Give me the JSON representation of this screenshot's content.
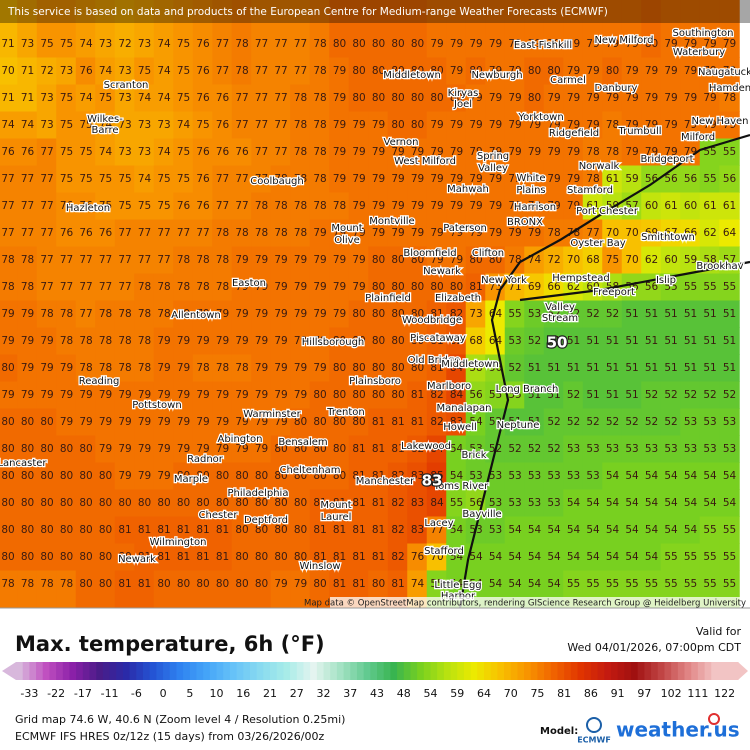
{
  "header": {
    "disclaimer": "This service is based on data and products of the European Centre for Medium-range Weather Forecasts (ECMWF)"
  },
  "map": {
    "attribution": "Map data © OpenStreetMap contributors, rendering GIScience Research Group @ Heidelberg University",
    "highlights": [
      50,
      83
    ],
    "places": [
      "East Fishkill",
      "New Milford",
      "Southington",
      "Waterbury",
      "Naugatuck",
      "Middletown",
      "Newburgh",
      "Carmel",
      "Danbury",
      "Hamden",
      "Kiryas",
      "Joel",
      "Scranton",
      "Wilkes-",
      "Barre",
      "Yorktown",
      "Ridgefield",
      "Trumbull",
      "New Haven",
      "Milford",
      "Vernon",
      "West Milford",
      "Spring",
      "Valley",
      "Norwalk",
      "Bridgeport",
      "Coolbaugh",
      "Mahwah",
      "White",
      "Plains",
      "Stamford",
      "Hazleton",
      "Montville",
      "Harrison",
      "Port Chester",
      "Mount",
      "Olive",
      "Paterson",
      "BRONX",
      "Oyster Bay",
      "Smithtown",
      "Bloomfield",
      "Clifton",
      "Newark",
      "New York",
      "Hempstead",
      "Islip",
      "Brookhav",
      "Easton",
      "Plainfield",
      "Elizabeth",
      "Freeport",
      "Valley",
      "Stream",
      "Allentown",
      "Woodbridge",
      "Hillsborough",
      "Piscataway",
      "Old Bridge",
      "Middletown",
      "Reading",
      "Plainsboro",
      "Marlboro",
      "Long Branch",
      "Pottstown",
      "Manalapan",
      "Warminster",
      "Trenton",
      "Neptune",
      "Howell",
      "Abington",
      "Bensalem",
      "Lakewood",
      "Radnor",
      "Lancaster",
      "Brick",
      "Cheltenham",
      "Manchester",
      "Toms River",
      "Marple",
      "Philadelphia",
      "Mount",
      "Laurel",
      "Bayville",
      "Chester",
      "Deptford",
      "Lacey",
      "Wilmington",
      "Stafford",
      "Newark",
      "Winslow",
      "Little Egg",
      "Harbor"
    ]
  },
  "grid": {
    "rows": [
      [
        71,
        73,
        75,
        75,
        74,
        73,
        72,
        73,
        74,
        75,
        76,
        77,
        78,
        77,
        77,
        77,
        78,
        80,
        80,
        80,
        80,
        80,
        79,
        79,
        79,
        79,
        79,
        79,
        79,
        79,
        79,
        79,
        79,
        80,
        79,
        79,
        79,
        79
      ],
      [
        70,
        71,
        72,
        73,
        76,
        74,
        73,
        75,
        74,
        75,
        76,
        77,
        78,
        77,
        77,
        77,
        78,
        79,
        80,
        80,
        80,
        80,
        80,
        79,
        80,
        79,
        79,
        80,
        80,
        79,
        79,
        80,
        79,
        79,
        79,
        79,
        79,
        79
      ],
      [
        71,
        71,
        73,
        75,
        74,
        75,
        73,
        74,
        74,
        75,
        76,
        76,
        77,
        77,
        77,
        78,
        78,
        79,
        80,
        80,
        80,
        80,
        80,
        80,
        79,
        79,
        79,
        80,
        79,
        79,
        79,
        79,
        79,
        79,
        79,
        79,
        79,
        78
      ],
      [
        74,
        74,
        73,
        75,
        75,
        74,
        73,
        73,
        73,
        74,
        75,
        76,
        77,
        77,
        77,
        78,
        78,
        79,
        79,
        79,
        80,
        80,
        79,
        79,
        79,
        79,
        79,
        79,
        79,
        79,
        79,
        78,
        79,
        79,
        79,
        79,
        79,
        79
      ],
      [
        76,
        76,
        77,
        75,
        75,
        74,
        73,
        73,
        74,
        75,
        76,
        76,
        76,
        77,
        77,
        78,
        78,
        79,
        79,
        79,
        79,
        79,
        79,
        79,
        79,
        79,
        79,
        79,
        79,
        79,
        78,
        78,
        79,
        79,
        79,
        79,
        55,
        55
      ],
      [
        77,
        77,
        77,
        75,
        75,
        75,
        75,
        74,
        75,
        75,
        76,
        77,
        77,
        77,
        78,
        78,
        78,
        79,
        79,
        79,
        79,
        79,
        79,
        79,
        79,
        79,
        79,
        79,
        79,
        79,
        78,
        61,
        59,
        56,
        56,
        56,
        55,
        56
      ],
      [
        77,
        77,
        77,
        76,
        76,
        75,
        75,
        75,
        75,
        76,
        76,
        77,
        77,
        78,
        78,
        78,
        78,
        78,
        79,
        79,
        79,
        79,
        79,
        79,
        79,
        79,
        79,
        79,
        79,
        79,
        61,
        59,
        57,
        60,
        61,
        60,
        61,
        61
      ],
      [
        77,
        77,
        77,
        76,
        76,
        76,
        77,
        77,
        77,
        77,
        77,
        78,
        78,
        78,
        78,
        78,
        79,
        79,
        79,
        79,
        79,
        79,
        79,
        79,
        79,
        79,
        79,
        79,
        78,
        78,
        77,
        70,
        70,
        69,
        67,
        66,
        62,
        64
      ],
      [
        78,
        78,
        77,
        77,
        77,
        77,
        77,
        77,
        77,
        78,
        78,
        78,
        79,
        79,
        79,
        79,
        79,
        79,
        79,
        80,
        80,
        80,
        79,
        79,
        80,
        80,
        78,
        74,
        72,
        70,
        68,
        75,
        70,
        62,
        60,
        59,
        58,
        57
      ],
      [
        78,
        78,
        77,
        77,
        77,
        77,
        77,
        78,
        78,
        78,
        78,
        78,
        79,
        79,
        79,
        79,
        79,
        79,
        79,
        80,
        80,
        80,
        80,
        80,
        81,
        75,
        71,
        69,
        66,
        62,
        60,
        58,
        56,
        56,
        55,
        55,
        55,
        55
      ],
      [
        79,
        79,
        78,
        78,
        77,
        78,
        78,
        78,
        78,
        79,
        79,
        79,
        79,
        79,
        79,
        79,
        79,
        79,
        80,
        80,
        80,
        80,
        81,
        82,
        73,
        64,
        55,
        53,
        52,
        52,
        52,
        52,
        51,
        51,
        51,
        51,
        51,
        51
      ],
      [
        79,
        79,
        79,
        78,
        78,
        78,
        78,
        78,
        79,
        79,
        79,
        79,
        79,
        79,
        79,
        79,
        79,
        80,
        80,
        80,
        80,
        80,
        81,
        82,
        68,
        64,
        53,
        52,
        51,
        51,
        51,
        51,
        51,
        51,
        51,
        51,
        51,
        51
      ],
      [
        80,
        79,
        79,
        79,
        78,
        78,
        78,
        78,
        79,
        79,
        78,
        78,
        78,
        79,
        79,
        79,
        79,
        80,
        80,
        80,
        80,
        80,
        81,
        84,
        58,
        56,
        52,
        51,
        51,
        51,
        51,
        51,
        51,
        51,
        51,
        51,
        51,
        51
      ],
      [
        79,
        79,
        79,
        79,
        79,
        79,
        79,
        79,
        79,
        79,
        79,
        79,
        79,
        79,
        79,
        79,
        80,
        80,
        80,
        80,
        80,
        81,
        82,
        84,
        56,
        55,
        55,
        51,
        51,
        52,
        51,
        51,
        51,
        52,
        52,
        52,
        52,
        52
      ],
      [
        80,
        80,
        80,
        79,
        79,
        79,
        79,
        79,
        79,
        79,
        79,
        79,
        79,
        79,
        79,
        80,
        80,
        80,
        80,
        81,
        81,
        81,
        82,
        83,
        54,
        52,
        51,
        51,
        52,
        52,
        52,
        52,
        52,
        52,
        52,
        53,
        53,
        53
      ],
      [
        80,
        80,
        80,
        80,
        80,
        79,
        79,
        79,
        79,
        79,
        79,
        79,
        79,
        79,
        80,
        80,
        80,
        80,
        81,
        81,
        81,
        82,
        84,
        54,
        53,
        52,
        52,
        52,
        52,
        53,
        53,
        53,
        53,
        53,
        53,
        53,
        53,
        53
      ],
      [
        80,
        80,
        80,
        80,
        80,
        80,
        79,
        79,
        79,
        80,
        80,
        80,
        80,
        80,
        80,
        80,
        80,
        80,
        81,
        81,
        82,
        83,
        85,
        54,
        53,
        53,
        53,
        53,
        53,
        53,
        53,
        54,
        54,
        54,
        54,
        54,
        54,
        54
      ],
      [
        80,
        80,
        80,
        80,
        80,
        80,
        80,
        80,
        80,
        80,
        80,
        80,
        80,
        80,
        80,
        80,
        81,
        81,
        81,
        81,
        82,
        83,
        84,
        55,
        56,
        53,
        53,
        53,
        53,
        54,
        54,
        54,
        54,
        54,
        54,
        54,
        54,
        54
      ],
      [
        80,
        80,
        80,
        80,
        80,
        80,
        81,
        81,
        81,
        81,
        81,
        81,
        80,
        80,
        80,
        80,
        81,
        81,
        81,
        81,
        82,
        83,
        77,
        54,
        53,
        53,
        54,
        54,
        54,
        54,
        54,
        54,
        54,
        54,
        54,
        54,
        55,
        55
      ],
      [
        80,
        80,
        80,
        80,
        80,
        80,
        80,
        81,
        81,
        81,
        81,
        81,
        80,
        80,
        80,
        80,
        81,
        81,
        81,
        81,
        82,
        76,
        70,
        54,
        54,
        54,
        54,
        54,
        54,
        54,
        54,
        54,
        54,
        54,
        55,
        55,
        55,
        55
      ],
      [
        78,
        78,
        78,
        78,
        80,
        80,
        81,
        81,
        80,
        80,
        80,
        80,
        80,
        80,
        79,
        79,
        80,
        81,
        81,
        80,
        81,
        74,
        55,
        54,
        54,
        54,
        54,
        54,
        54,
        55,
        55,
        55,
        55,
        55,
        55,
        55,
        55,
        55
      ]
    ]
  },
  "legend": {
    "title": "Max. temperature, 6h (°F)",
    "valid_label": "Valid for",
    "valid_time": "Wed 04/01/2026, 07:00pm CDT",
    "colorbar": {
      "ticks": [
        -33,
        -22,
        -17,
        -11,
        -6,
        0,
        5,
        10,
        16,
        21,
        27,
        32,
        37,
        43,
        48,
        54,
        59,
        64,
        70,
        75,
        81,
        86,
        91,
        97,
        102,
        111,
        122
      ],
      "colors": [
        "#d8b8dc",
        "#c050c0",
        "#8a20a8",
        "#4a1c88",
        "#2a2aa8",
        "#2454d4",
        "#2f82f0",
        "#44a4f8",
        "#66c2f8",
        "#88daf0",
        "#a8ece8",
        "#e4f4f0",
        "#a4e2c4",
        "#62ca90",
        "#38b450",
        "#78d020",
        "#b8e210",
        "#ecea00",
        "#f8c000",
        "#f89400",
        "#f06200",
        "#e03400",
        "#c41a10",
        "#a01010",
        "#c04444",
        "#e08484",
        "#f2c4c4"
      ]
    }
  },
  "footer": {
    "grid_info": "Grid map 74.6 W, 40.6 N (Zoom level 4 / Resolution 0.25mi)",
    "model_info": "ECMWF IFS HRES 0z/12z (15 days) from 03/26/2026/00z",
    "model_label": "Model:",
    "ecmwf": "ECMWF",
    "brand": "weather.us"
  }
}
